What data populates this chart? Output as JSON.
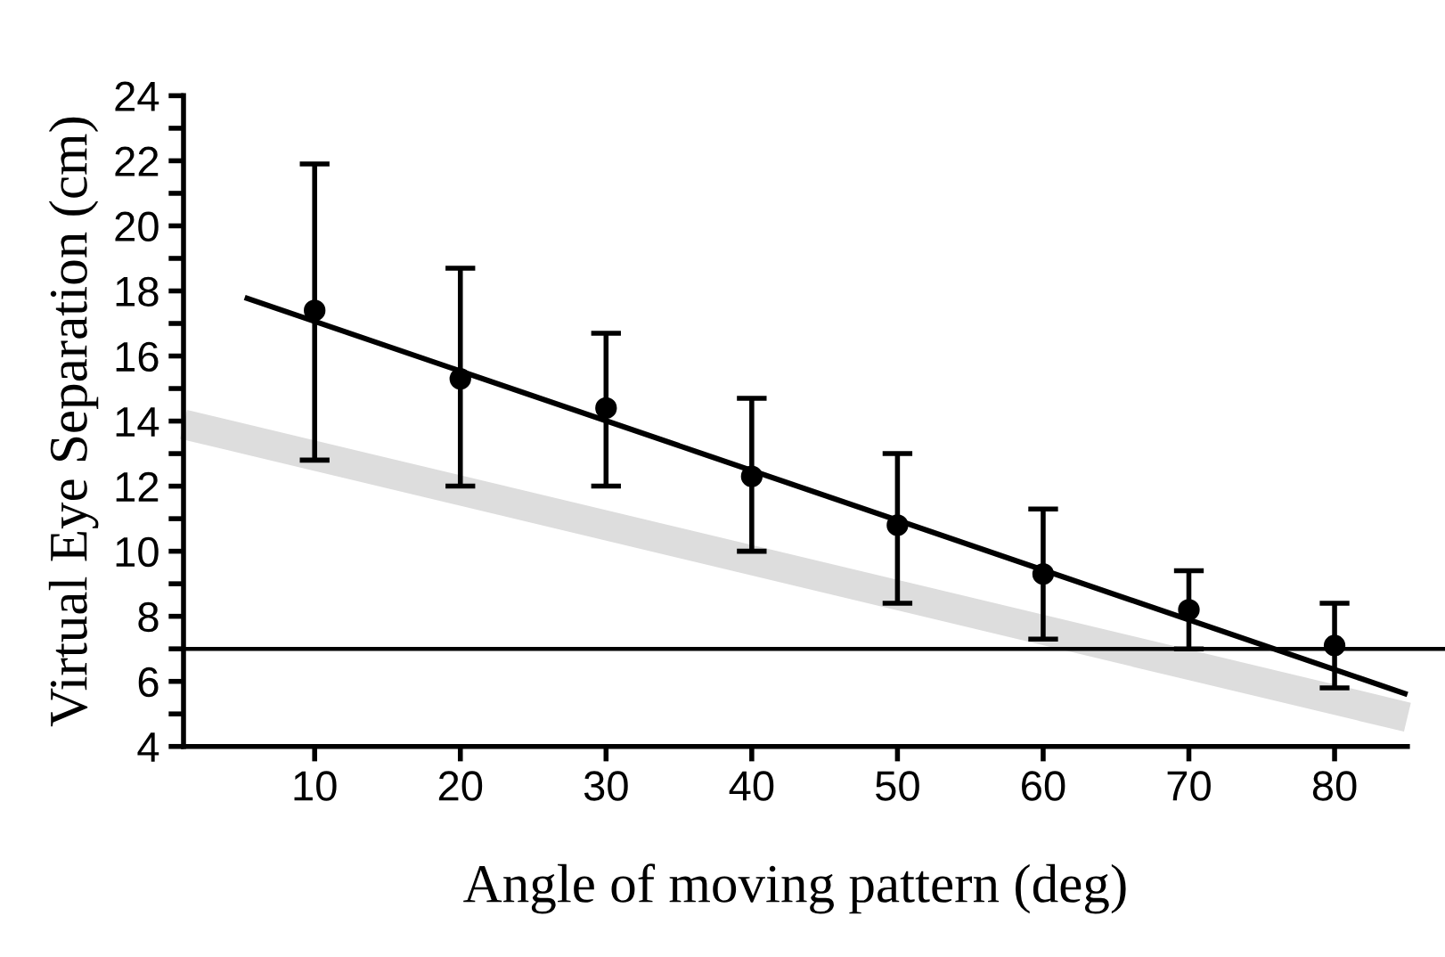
{
  "chart_data": {
    "type": "scatter",
    "xlabel": "Angle of moving pattern (deg)",
    "ylabel": "Virtual Eye Separation (cm)",
    "series": [
      {
        "type": "line",
        "color": "#dddddd",
        "x": [
          1,
          85
        ],
        "values": [
          13.9,
          4.9
        ],
        "marker": "none"
      },
      {
        "type": "line",
        "color": "#000000",
        "x": [
          5.2,
          85
        ],
        "values": [
          17.8,
          5.6
        ],
        "marker": "none"
      },
      {
        "color": "#000000",
        "marker": "circle",
        "x": [
          10,
          20,
          30,
          40,
          50,
          60,
          70,
          80
        ],
        "values": [
          17.4,
          15.3,
          14.4,
          12.3,
          10.8,
          9.3,
          8.2,
          7.1
        ],
        "errors": [
          [
            12.8,
            21.9
          ],
          [
            12.0,
            18.7
          ],
          [
            12.0,
            16.7
          ],
          [
            10.0,
            14.7
          ],
          [
            8.4,
            13.0
          ],
          [
            7.3,
            11.3
          ],
          [
            7.0,
            9.4
          ],
          [
            5.8,
            8.4
          ]
        ]
      }
    ],
    "ref_lines": [
      {
        "axis": "y",
        "value": 7,
        "color": "#000000"
      }
    ],
    "xlim": [
      1,
      85
    ],
    "ylim": [
      4,
      24
    ],
    "xticks": [
      10,
      20,
      30,
      40,
      50,
      60,
      70,
      80
    ],
    "yticks": [
      4,
      {
        "value": 5,
        "label": null
      },
      6,
      {
        "value": 7,
        "label": null
      },
      8,
      {
        "value": 9,
        "label": null
      },
      10,
      {
        "value": 11,
        "label": null
      },
      12,
      {
        "value": 13,
        "label": null
      },
      14,
      {
        "value": 15,
        "label": null
      },
      16,
      {
        "value": 17,
        "label": null
      },
      18,
      {
        "value": 19,
        "label": null
      },
      20,
      {
        "value": 21,
        "label": null
      },
      22,
      {
        "value": 23,
        "label": null
      },
      24
    ],
    "grid": false,
    "legend": false
  }
}
